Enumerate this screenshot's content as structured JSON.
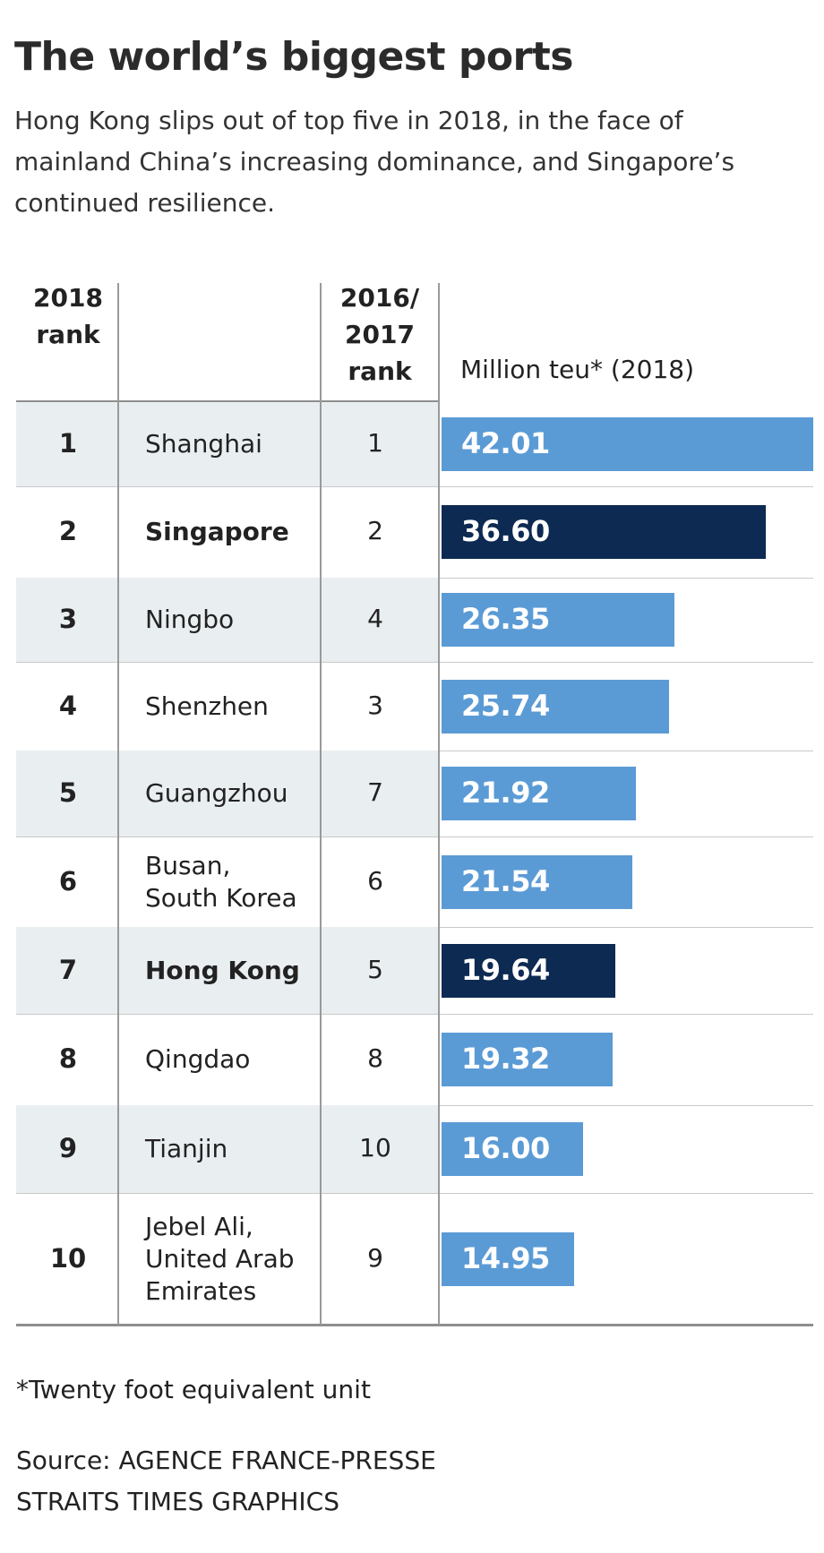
{
  "title": "The world’s biggest ports",
  "subtitle": "Hong Kong slips out of top five in 2018, in the face of mainland China’s increasing dominance, and Singapore’s continued resilience.",
  "table": {
    "col_rank_header": [
      "2018",
      "rank"
    ],
    "col_prev_header": [
      "2016/",
      "2017",
      "rank"
    ],
    "col_value_header": "Million teu* (2018)"
  },
  "colors": {
    "regular_bar": "#5b9bd5",
    "highlight_bar": "#0d2a52",
    "shaded_row": "#e9eef1"
  },
  "chart_data": {
    "type": "bar",
    "orientation": "horizontal",
    "title": "The world’s biggest ports",
    "xlabel": "Million teu* (2018)",
    "xlim": [
      0,
      42.01
    ],
    "rows": [
      {
        "rank": "1",
        "port": [
          "Shanghai"
        ],
        "prev_rank": "1",
        "value": 42.01,
        "label": "42.01",
        "highlight": false
      },
      {
        "rank": "2",
        "port": [
          "Singapore"
        ],
        "prev_rank": "2",
        "value": 36.6,
        "label": "36.60",
        "highlight": true
      },
      {
        "rank": "3",
        "port": [
          "Ningbo"
        ],
        "prev_rank": "4",
        "value": 26.35,
        "label": "26.35",
        "highlight": false
      },
      {
        "rank": "4",
        "port": [
          "Shenzhen"
        ],
        "prev_rank": "3",
        "value": 25.74,
        "label": "25.74",
        "highlight": false
      },
      {
        "rank": "5",
        "port": [
          "Guangzhou"
        ],
        "prev_rank": "7",
        "value": 21.92,
        "label": "21.92",
        "highlight": false
      },
      {
        "rank": "6",
        "port": [
          "Busan,",
          "South Korea"
        ],
        "prev_rank": "6",
        "value": 21.54,
        "label": "21.54",
        "highlight": false
      },
      {
        "rank": "7",
        "port": [
          "Hong Kong"
        ],
        "prev_rank": "5",
        "value": 19.64,
        "label": "19.64",
        "highlight": true
      },
      {
        "rank": "8",
        "port": [
          "Qingdao"
        ],
        "prev_rank": "8",
        "value": 19.32,
        "label": "19.32",
        "highlight": false
      },
      {
        "rank": "9",
        "port": [
          "Tianjin"
        ],
        "prev_rank": "10",
        "value": 16.0,
        "label": "16.00",
        "highlight": false
      },
      {
        "rank": "10",
        "port": [
          "Jebel Ali,",
          "United Arab",
          "Emirates"
        ],
        "prev_rank": "9",
        "value": 14.95,
        "label": "14.95",
        "highlight": false
      }
    ]
  },
  "footnote": "*Twenty foot equivalent unit",
  "source": [
    "Source: AGENCE FRANCE-PRESSE",
    "STRAITS TIMES GRAPHICS"
  ]
}
